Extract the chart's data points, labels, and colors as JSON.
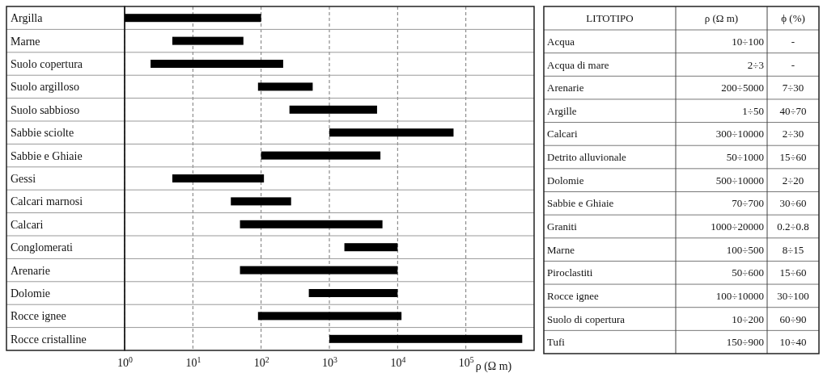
{
  "chart_data": [
    {
      "type": "bar",
      "orientation": "horizontal",
      "log": "x",
      "grid": "x",
      "xlabel": "ρ (Ω m)",
      "categories": [
        "Argilla",
        "Marne",
        "Suolo copertura",
        "Suolo argilloso",
        "Suolo sabbioso",
        "Sabbie sciolte",
        "Sabbie e Ghiaie",
        "Gessi",
        "Calcari marnosi",
        "Calcari",
        "Conglomerati",
        "Arenarie",
        "Dolomie",
        "Rocce ignee",
        "Rocce cristalline"
      ],
      "base": [
        1,
        5,
        2.4,
        90,
        260,
        1000,
        100,
        5,
        36,
        49,
        1660,
        49,
        500,
        90,
        1000
      ],
      "values": [
        99,
        50,
        208,
        480,
        4740,
        65000,
        5500,
        105,
        239,
        5951,
        8340,
        9951,
        9500,
        11310,
        669000
      ],
      "color": "#000000",
      "xlim": [
        1,
        1000000
      ],
      "xticks": [
        {
          "value": 1,
          "label": "10$^{0}$"
        },
        {
          "value": 10,
          "label": "10$^{1}$"
        },
        {
          "value": 100,
          "label": "10$^{2}$"
        },
        {
          "value": 1000,
          "label": "10$^{3}$"
        },
        {
          "value": 10000,
          "label": "10$^{4}$"
        },
        {
          "value": 100000,
          "label": "10$^{5}$"
        }
      ]
    },
    {
      "type": "other",
      "categories": [
        "LITOTIPO",
        "ρ (Ω m)",
        "ϕ (%)"
      ],
      "y_categories": [
        "Acqua",
        "Acqua di mare",
        "Arenarie",
        "Argille",
        "Calcari",
        "Detrito alluvionale",
        "Dolomie",
        "Sabbie e Ghiaie",
        "Graniti",
        "Marne",
        "Piroclastiti",
        "Rocce ignee",
        "Suolo di copertura",
        "Tufi"
      ],
      "cell_labels": [
        [
          "10÷100",
          "-"
        ],
        [
          "2÷3",
          "-"
        ],
        [
          "200÷5000",
          "7÷30"
        ],
        [
          "1÷50",
          "40÷70"
        ],
        [
          "300÷10000",
          "2÷30"
        ],
        [
          "50÷1000",
          "15÷60"
        ],
        [
          "500÷10000",
          "2÷20"
        ],
        [
          "70÷700",
          "30÷60"
        ],
        [
          "1000÷20000",
          "0.2÷0.8"
        ],
        [
          "100÷500",
          "8÷15"
        ],
        [
          "50÷600",
          "15÷60"
        ],
        [
          "100÷10000",
          "30÷100"
        ],
        [
          "10÷200",
          "60÷90"
        ],
        [
          "150÷900",
          "10÷40"
        ]
      ]
    }
  ]
}
